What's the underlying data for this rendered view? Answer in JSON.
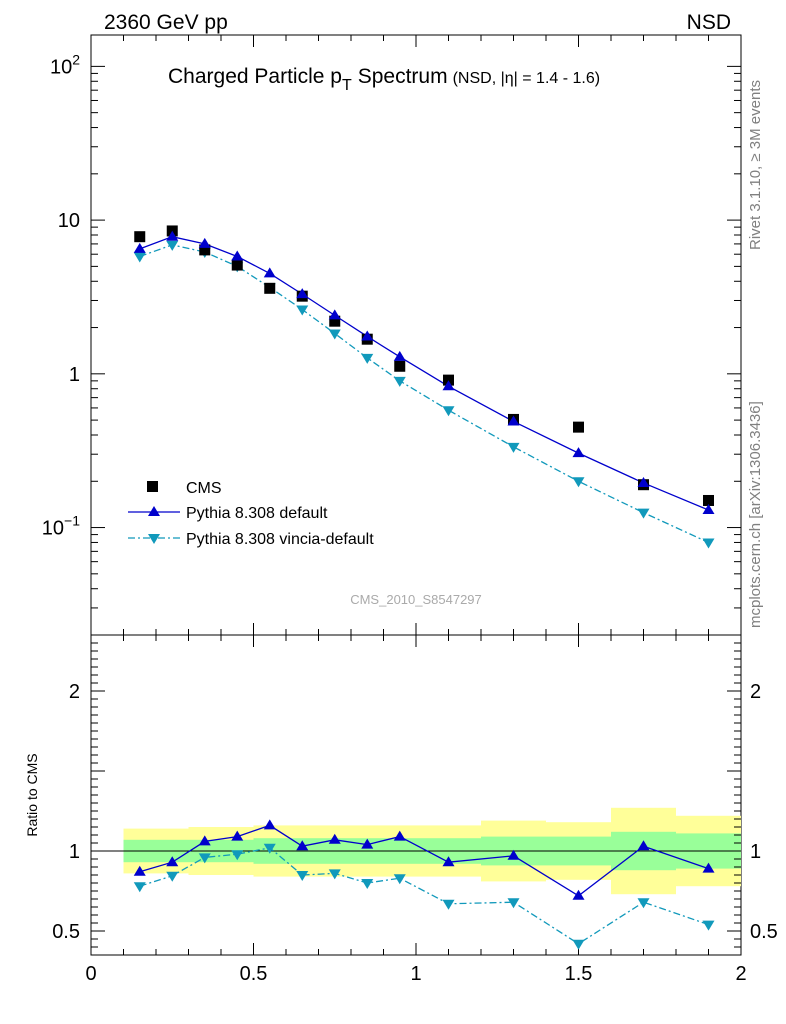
{
  "header": {
    "left": "2360 GeV pp",
    "right": "NSD"
  },
  "side": {
    "rivet": "Rivet 3.1.10, ≥ 3M events",
    "mcplots": "mcplots.cern.ch [arXiv:1306.3436]"
  },
  "watermark": "CMS_2010_S8547297",
  "colors": {
    "cms": "#000000",
    "pythia": "#0000cc",
    "vincia": "#1199bb",
    "band_inner": "#99ff99",
    "band_outer": "#ffff99"
  },
  "chart_data": [
    {
      "type": "line",
      "title_main": "Charged Particle p",
      "title_sub": "T",
      "title_main2": "Spectrum",
      "title_extra": "(NSD, |η| = 1.4 - 1.6)",
      "yscale": "log",
      "xlim": [
        0,
        2
      ],
      "ylim": [
        0.02,
        160
      ],
      "ytick_labels": [
        {
          "value": 100,
          "base": "10",
          "exp": "2"
        },
        {
          "value": 10,
          "base": "10",
          "exp": ""
        },
        {
          "value": 1,
          "base": "1",
          "exp": ""
        },
        {
          "value": 0.1,
          "base": "10",
          "exp": "−1"
        }
      ],
      "legend": {
        "position": "bottom-left",
        "entries": [
          "CMS",
          "Pythia 8.308 default",
          "Pythia 8.308 vincia-default"
        ]
      },
      "series": [
        {
          "name": "CMS",
          "style": "markers",
          "x": [
            0.15,
            0.25,
            0.35,
            0.45,
            0.55,
            0.65,
            0.75,
            0.85,
            0.95,
            1.1,
            1.3,
            1.5,
            1.7,
            1.9
          ],
          "y": [
            7.8,
            8.5,
            6.4,
            5.1,
            3.6,
            3.2,
            2.2,
            1.68,
            1.12,
            0.91,
            0.505,
            0.45,
            0.19,
            0.15
          ]
        },
        {
          "name": "Pythia 8.308 default",
          "style": "solid",
          "x": [
            0.15,
            0.25,
            0.35,
            0.45,
            0.55,
            0.65,
            0.75,
            0.85,
            0.95,
            1.1,
            1.3,
            1.5,
            1.7,
            1.9
          ],
          "y": [
            6.5,
            7.8,
            7.0,
            5.8,
            4.5,
            3.3,
            2.4,
            1.75,
            1.29,
            0.83,
            0.49,
            0.305,
            0.195,
            0.13
          ]
        },
        {
          "name": "Pythia 8.308 vincia-default",
          "style": "dashdot",
          "x": [
            0.15,
            0.25,
            0.35,
            0.45,
            0.55,
            0.65,
            0.75,
            0.85,
            0.95,
            1.1,
            1.3,
            1.5,
            1.7,
            1.9
          ],
          "y": [
            5.8,
            6.9,
            6.2,
            5.0,
            3.65,
            2.62,
            1.83,
            1.27,
            0.9,
            0.58,
            0.335,
            0.2,
            0.125,
            0.08
          ]
        }
      ]
    },
    {
      "type": "line",
      "ylabel": "Ratio to CMS",
      "xlim": [
        0,
        2
      ],
      "ylim": [
        0.35,
        2.35
      ],
      "xticks": [
        0,
        0.5,
        1,
        1.5,
        2
      ],
      "xtick_labels": [
        "0",
        "0.5",
        "1",
        "1.5",
        "2"
      ],
      "yticks": [
        0.5,
        1,
        2
      ],
      "ytick_labels": [
        "0.5",
        "1",
        "2"
      ],
      "bands": {
        "x_edges": [
          0.1,
          0.2,
          0.3,
          0.4,
          0.5,
          0.6,
          0.7,
          0.8,
          0.9,
          1.0,
          1.2,
          1.4,
          1.6,
          1.8,
          2.0
        ],
        "inner_lo": [
          0.93,
          0.93,
          0.93,
          0.93,
          0.92,
          0.92,
          0.92,
          0.92,
          0.92,
          0.92,
          0.91,
          0.91,
          0.88,
          0.89
        ],
        "inner_hi": [
          1.07,
          1.07,
          1.07,
          1.07,
          1.08,
          1.08,
          1.08,
          1.08,
          1.08,
          1.08,
          1.09,
          1.09,
          1.12,
          1.11
        ],
        "outer_lo": [
          0.86,
          0.86,
          0.85,
          0.85,
          0.84,
          0.84,
          0.84,
          0.84,
          0.84,
          0.84,
          0.81,
          0.82,
          0.73,
          0.78
        ],
        "outer_hi": [
          1.14,
          1.14,
          1.15,
          1.15,
          1.16,
          1.16,
          1.16,
          1.16,
          1.16,
          1.16,
          1.19,
          1.18,
          1.27,
          1.22
        ]
      },
      "series": [
        {
          "name": "Pythia 8.308 default",
          "style": "solid",
          "x": [
            0.15,
            0.25,
            0.35,
            0.45,
            0.55,
            0.65,
            0.75,
            0.85,
            0.95,
            1.1,
            1.3,
            1.5,
            1.7,
            1.9
          ],
          "y": [
            0.87,
            0.93,
            1.06,
            1.09,
            1.16,
            1.03,
            1.07,
            1.04,
            1.09,
            0.93,
            0.97,
            0.72,
            1.03,
            0.89
          ]
        },
        {
          "name": "Pythia 8.308 vincia-default",
          "style": "dashdot",
          "x": [
            0.15,
            0.25,
            0.35,
            0.45,
            0.55,
            0.65,
            0.75,
            0.85,
            0.95,
            1.1,
            1.3,
            1.5,
            1.7,
            1.9
          ],
          "y": [
            0.78,
            0.845,
            0.96,
            0.98,
            1.02,
            0.85,
            0.86,
            0.8,
            0.83,
            0.67,
            0.68,
            0.42,
            0.68,
            0.54
          ]
        }
      ]
    }
  ]
}
